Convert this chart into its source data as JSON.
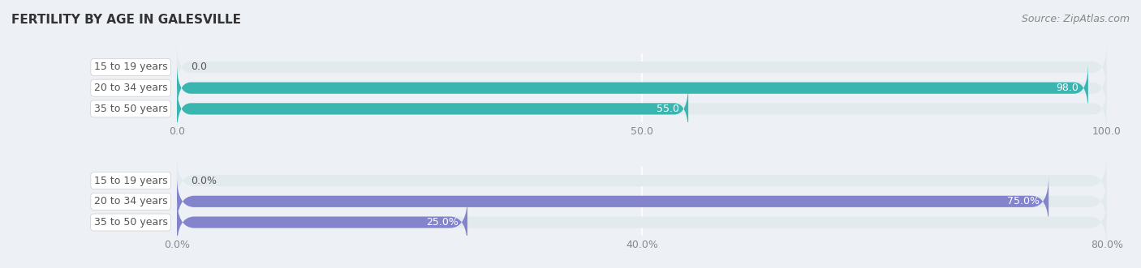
{
  "title": "FERTILITY BY AGE IN GALESVILLE",
  "source": "Source: ZipAtlas.com",
  "chart1": {
    "categories": [
      "15 to 19 years",
      "20 to 34 years",
      "35 to 50 years"
    ],
    "values": [
      0.0,
      98.0,
      55.0
    ],
    "bar_color": "#3ab5b0",
    "bar_bg_color": "#e2eaee",
    "xlim": [
      0.0,
      100.0
    ],
    "xticks": [
      0.0,
      50.0,
      100.0
    ],
    "xticklabels": [
      "0.0",
      "50.0",
      "100.0"
    ],
    "value_labels": [
      "0.0",
      "98.0",
      "55.0"
    ]
  },
  "chart2": {
    "categories": [
      "15 to 19 years",
      "20 to 34 years",
      "35 to 50 years"
    ],
    "values": [
      0.0,
      75.0,
      25.0
    ],
    "bar_color": "#8484cc",
    "bar_bg_color": "#e2eaee",
    "xlim": [
      0.0,
      80.0
    ],
    "xticks": [
      0.0,
      40.0,
      80.0
    ],
    "xticklabels": [
      "0.0%",
      "40.0%",
      "80.0%"
    ],
    "value_labels": [
      "0.0%",
      "75.0%",
      "25.0%"
    ]
  },
  "background_color": "#edf1f5",
  "label_bg_color": "#ffffff",
  "label_text_color": "#555555",
  "title_color": "#333333",
  "source_color": "#888888",
  "tick_color": "#888888",
  "bar_height": 0.55,
  "label_fontsize": 9,
  "title_fontsize": 11,
  "source_fontsize": 9,
  "value_fontsize": 9
}
